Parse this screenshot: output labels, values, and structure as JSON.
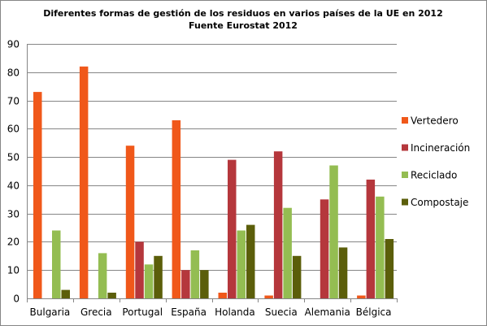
{
  "chart_data": {
    "type": "bar",
    "title": "Diferentes formas de gestión de los residuos en varios países de la UE en 2012",
    "subtitle": "Fuente Eurostat 2012",
    "xlabel": "",
    "ylabel": "",
    "ylim": [
      0,
      90
    ],
    "ytick_step": 10,
    "yticks": [
      "0",
      "10",
      "20",
      "30",
      "40",
      "50",
      "60",
      "70",
      "80",
      "90"
    ],
    "grid": true,
    "legend_position": "right",
    "categories": [
      "Bulgaria",
      "Grecia",
      "Portugal",
      "España",
      "Holanda",
      "Suecia",
      "Alemania",
      "Bélgica"
    ],
    "series": [
      {
        "name": "Vertedero",
        "color": "#f0581a",
        "values": [
          73,
          82,
          54,
          63,
          2,
          1,
          0,
          1
        ]
      },
      {
        "name": "Incineración",
        "color": "#b5373c",
        "values": [
          0,
          0,
          20,
          10,
          49,
          52,
          35,
          42
        ]
      },
      {
        "name": "Reciclado",
        "color": "#94bd52",
        "values": [
          24,
          16,
          12,
          17,
          24,
          32,
          47,
          36
        ]
      },
      {
        "name": "Compostaje",
        "color": "#5b5e0a",
        "values": [
          3,
          2,
          15,
          10,
          26,
          15,
          18,
          21
        ]
      }
    ]
  }
}
